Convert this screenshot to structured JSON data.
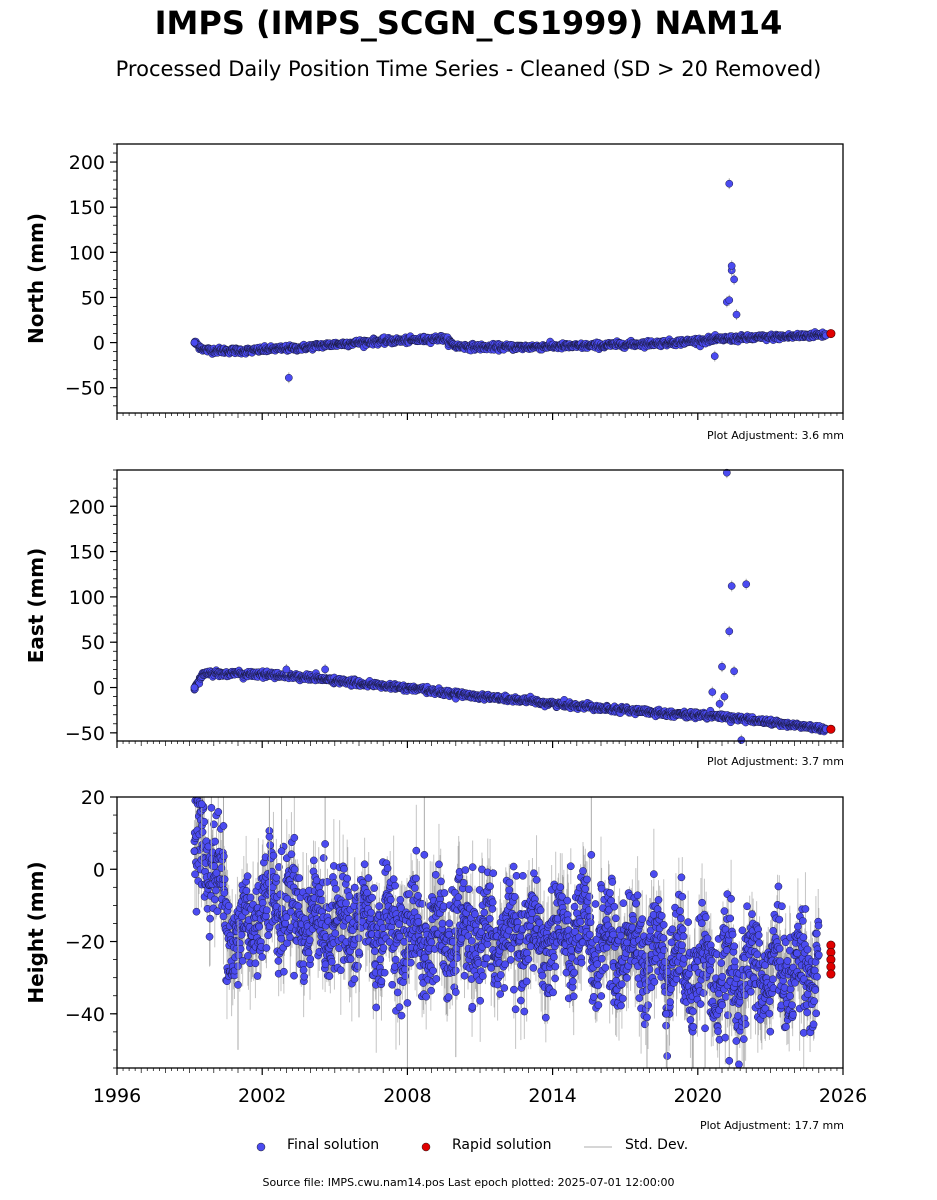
{
  "title": "IMPS (IMPS_SCGN_CS1999) NAM14",
  "subtitle": "Processed Daily Position Time Series - Cleaned (SD > 20 Removed)",
  "colors": {
    "final": "#4b4bf0",
    "rapid": "#e00000",
    "stddev": "#b0b0b0"
  },
  "legend": {
    "final": "Final solution",
    "rapid": "Rapid solution",
    "stddev": "Std. Dev."
  },
  "footer": "Source file: IMPS.cwu.nam14.pos  Last epoch plotted: 2025-07-01 12:00:00",
  "chart_data": [
    {
      "type": "scatter",
      "ylabel": "North (mm)",
      "ylim": [
        -78,
        220
      ],
      "yticks": [
        200,
        150,
        100,
        50,
        0,
        -50
      ],
      "xlim": [
        1996,
        2026
      ],
      "plot_adjustment": "Plot Adjustment: 3.6 mm",
      "final_series": [
        [
          1999.2,
          0
        ],
        [
          1999.6,
          -8
        ],
        [
          2000.5,
          -9
        ],
        [
          2001.5,
          -9
        ],
        [
          2002.5,
          -7
        ],
        [
          2003.5,
          -6
        ],
        [
          2004.5,
          -3
        ],
        [
          2005.5,
          -1
        ],
        [
          2006.5,
          1
        ],
        [
          2007.5,
          2
        ],
        [
          2008.5,
          3
        ],
        [
          2009.5,
          5
        ],
        [
          2010.0,
          -4
        ],
        [
          2011,
          -5
        ],
        [
          2012,
          -5
        ],
        [
          2013,
          -5
        ],
        [
          2014,
          -4
        ],
        [
          2015,
          -4
        ],
        [
          2016,
          -3
        ],
        [
          2017,
          -2
        ],
        [
          2018,
          -1
        ],
        [
          2019,
          0
        ],
        [
          2020,
          2
        ],
        [
          2021,
          4
        ],
        [
          2022,
          5
        ],
        [
          2023,
          6
        ],
        [
          2024,
          7
        ],
        [
          2025.3,
          9
        ]
      ],
      "outliers": [
        [
          2003.1,
          -39
        ],
        [
          2020.7,
          -15
        ],
        [
          2021.2,
          45
        ],
        [
          2021.3,
          47
        ],
        [
          2021.4,
          80
        ],
        [
          2021.4,
          85
        ],
        [
          2021.5,
          70
        ],
        [
          2021.6,
          31
        ],
        [
          2021.3,
          176
        ]
      ],
      "rapid": [
        [
          2025.5,
          10
        ]
      ]
    },
    {
      "type": "scatter",
      "ylabel": "East (mm)",
      "ylim": [
        -59,
        240
      ],
      "yticks": [
        200,
        150,
        100,
        50,
        0,
        -50
      ],
      "xlim": [
        1996,
        2026
      ],
      "plot_adjustment": "Plot Adjustment: 3.7 mm",
      "final_series": [
        [
          1999.2,
          0
        ],
        [
          1999.6,
          16
        ],
        [
          2001,
          15
        ],
        [
          2002.5,
          14
        ],
        [
          2004,
          11
        ],
        [
          2005.5,
          6
        ],
        [
          2007,
          2
        ],
        [
          2008.5,
          -2
        ],
        [
          2010,
          -7
        ],
        [
          2011.5,
          -11
        ],
        [
          2013,
          -15
        ],
        [
          2014.5,
          -19
        ],
        [
          2016,
          -22
        ],
        [
          2017.5,
          -26
        ],
        [
          2019,
          -29
        ],
        [
          2020.5,
          -31
        ],
        [
          2022,
          -35
        ],
        [
          2023.5,
          -40
        ],
        [
          2025.3,
          -46
        ]
      ],
      "outliers": [
        [
          2003,
          20
        ],
        [
          2004.6,
          20
        ],
        [
          2020.6,
          -5
        ],
        [
          2020.9,
          -18
        ],
        [
          2021,
          23
        ],
        [
          2021.1,
          -10
        ],
        [
          2021.3,
          62
        ],
        [
          2021.4,
          112
        ],
        [
          2021.5,
          18
        ],
        [
          2022,
          114
        ],
        [
          2021.8,
          -58
        ],
        [
          2021.2,
          237
        ]
      ],
      "rapid": [
        [
          2025.5,
          -46
        ]
      ]
    },
    {
      "type": "scatter",
      "ylabel": "Height (mm)",
      "ylim": [
        -55,
        20
      ],
      "yticks": [
        20,
        0,
        -20,
        -40
      ],
      "xlim": [
        1996,
        2026
      ],
      "xticks": [
        1996,
        2002,
        2008,
        2014,
        2020,
        2026
      ],
      "plot_adjustment": "Plot Adjustment: 17.7 mm",
      "final_series": [
        [
          1999.2,
          5
        ],
        [
          1999.6,
          8
        ],
        [
          2000,
          0
        ],
        [
          2000.5,
          -12
        ],
        [
          2001,
          -20
        ],
        [
          2001.5,
          -14
        ],
        [
          2002,
          -10
        ],
        [
          2002.5,
          -8
        ],
        [
          2003,
          -10
        ],
        [
          2003.5,
          -12
        ],
        [
          2004,
          -14
        ],
        [
          2005,
          -15
        ],
        [
          2006,
          -15
        ],
        [
          2007,
          -16
        ],
        [
          2008,
          -18
        ],
        [
          2009,
          -19
        ],
        [
          2010,
          -18
        ],
        [
          2011,
          -19
        ],
        [
          2012,
          -19
        ],
        [
          2013,
          -19
        ],
        [
          2014,
          -19
        ],
        [
          2015,
          -18
        ],
        [
          2016,
          -21
        ],
        [
          2017,
          -22
        ],
        [
          2018,
          -22
        ],
        [
          2019,
          -25
        ],
        [
          2020,
          -27
        ],
        [
          2021,
          -30
        ],
        [
          2022,
          -29
        ],
        [
          2023,
          -28
        ],
        [
          2024,
          -28
        ],
        [
          2025,
          -27
        ]
      ],
      "outliers": [
        [
          1999.5,
          18
        ],
        [
          1999.9,
          17
        ],
        [
          2000.4,
          12
        ],
        [
          2001,
          -32
        ],
        [
          2002.3,
          9
        ],
        [
          2002.8,
          5
        ],
        [
          2004.6,
          7
        ],
        [
          2006,
          -23
        ],
        [
          2008,
          -37
        ],
        [
          2008.7,
          4
        ],
        [
          2010,
          -34
        ],
        [
          2015.6,
          4
        ],
        [
          2017.9,
          -41
        ],
        [
          2018.7,
          -40
        ],
        [
          2020.3,
          -44
        ],
        [
          2021.3,
          -53
        ],
        [
          2021.9,
          -47
        ]
      ],
      "rapid": [
        [
          2025.5,
          -21
        ],
        [
          2025.5,
          -23
        ],
        [
          2025.5,
          -25
        ],
        [
          2025.5,
          -27
        ],
        [
          2025.5,
          -29
        ]
      ]
    }
  ]
}
